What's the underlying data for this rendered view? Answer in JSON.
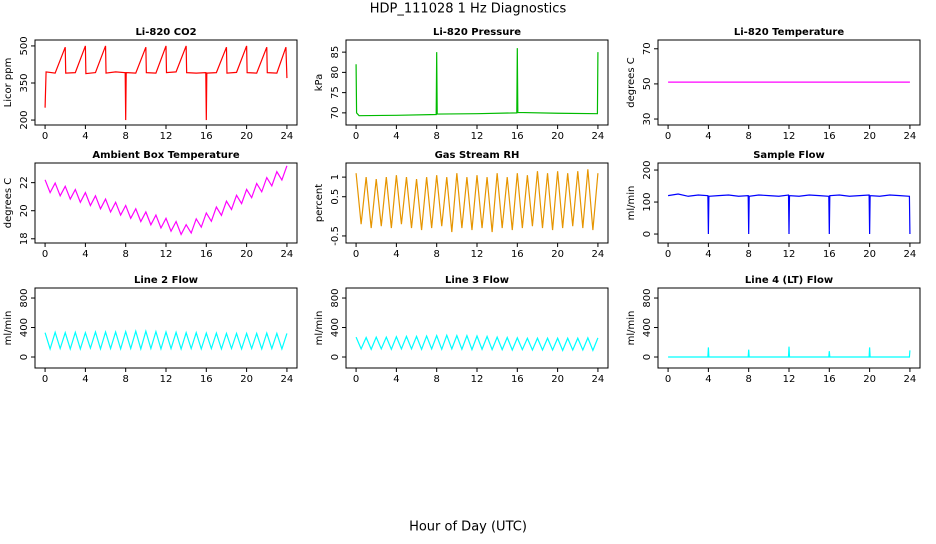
{
  "title": "HDP_111028  1 Hz Diagnostics",
  "xlabel": "Hour of Day (UTC)",
  "chart_data": [
    {
      "type": "line",
      "title": "Li-820 CO2",
      "ylabel": "Licor ppm",
      "color": "#ff0000",
      "x": [
        0,
        0.1,
        1,
        2,
        2.05,
        3,
        4,
        4.05,
        5,
        6,
        6.05,
        7,
        7.95,
        8,
        8.05,
        9,
        10,
        10.05,
        11,
        12,
        12.05,
        13,
        14,
        14.05,
        15,
        15.95,
        16,
        16.05,
        17,
        18,
        18.05,
        19,
        20,
        20.05,
        21,
        22,
        22.05,
        23,
        23.9,
        24
      ],
      "values": [
        250,
        395,
        390,
        495,
        390,
        392,
        500,
        388,
        392,
        500,
        390,
        395,
        392,
        200,
        392,
        390,
        495,
        392,
        390,
        500,
        392,
        395,
        500,
        392,
        390,
        392,
        200,
        390,
        392,
        495,
        390,
        393,
        500,
        392,
        390,
        495,
        392,
        390,
        495,
        370
      ],
      "xlim": [
        -1,
        25
      ],
      "xticks": [
        0,
        4,
        8,
        12,
        16,
        20,
        24
      ],
      "ylim": [
        180,
        524
      ],
      "yticks": [
        200,
        350,
        500
      ]
    },
    {
      "type": "line",
      "title": "Li-820 Pressure",
      "ylabel": "kPa",
      "color": "#00bb00",
      "x": [
        0,
        0.05,
        0.3,
        4,
        7.95,
        8,
        8.05,
        12,
        15.95,
        16,
        16.05,
        20,
        23.95,
        24
      ],
      "values": [
        82,
        70,
        69.3,
        69.4,
        69.6,
        85,
        69.7,
        69.8,
        70,
        86,
        70.1,
        69.9,
        69.8,
        85
      ],
      "xlim": [
        -1,
        25
      ],
      "xticks": [
        0,
        4,
        8,
        12,
        16,
        20,
        24
      ],
      "ylim": [
        67,
        88
      ],
      "yticks": [
        70,
        75,
        80,
        85
      ]
    },
    {
      "type": "line",
      "title": "Li-820 Temperature",
      "ylabel": "degrees C",
      "color": "#ff00ff",
      "x": [
        0,
        24
      ],
      "values": [
        51,
        51
      ],
      "xlim": [
        -1,
        25
      ],
      "xticks": [
        0,
        4,
        8,
        12,
        16,
        20,
        24
      ],
      "ylim": [
        26.6,
        75
      ],
      "yticks": [
        30,
        50,
        70
      ]
    },
    {
      "type": "line",
      "title": "Ambient Box Temperature",
      "ylabel": "degrees C",
      "color": "#ff00ff",
      "x": [
        0,
        0.5,
        1,
        1.5,
        2,
        2.5,
        3,
        3.5,
        4,
        4.5,
        5,
        5.5,
        6,
        6.5,
        7,
        7.5,
        8,
        8.5,
        9,
        9.5,
        10,
        10.5,
        11,
        11.5,
        12,
        12.5,
        13,
        13.5,
        14,
        14.5,
        15,
        15.5,
        16,
        16.5,
        17,
        17.5,
        18,
        18.5,
        19,
        19.5,
        20,
        20.5,
        21,
        21.5,
        22,
        22.5,
        23,
        23.5,
        24
      ],
      "values": [
        22.2,
        21.29,
        21.97,
        21.06,
        21.74,
        20.83,
        21.51,
        20.6,
        21.29,
        20.37,
        21.06,
        20.14,
        20.83,
        19.91,
        20.6,
        19.69,
        20.37,
        19.46,
        20.14,
        19.23,
        19.91,
        19.0,
        19.69,
        18.77,
        19.46,
        18.54,
        19.23,
        18.31,
        19.0,
        18.41,
        19.42,
        18.83,
        19.84,
        19.25,
        20.26,
        19.67,
        20.68,
        20.09,
        21.1,
        20.51,
        21.52,
        20.93,
        21.94,
        21.35,
        22.36,
        21.77,
        22.78,
        22.19,
        23.2
      ],
      "xlim": [
        -1,
        25
      ],
      "xticks": [
        0,
        4,
        8,
        12,
        16,
        20,
        24
      ],
      "ylim": [
        17.7,
        23.4
      ],
      "yticks": [
        18,
        20,
        22
      ]
    },
    {
      "type": "line",
      "title": "Gas Stream RH",
      "ylabel": "percent",
      "color": "#e69500",
      "x": [
        0,
        0.5,
        1,
        1.5,
        2,
        2.5,
        3,
        3.5,
        4,
        4.5,
        5,
        5.5,
        6,
        6.5,
        7,
        7.5,
        8,
        8.5,
        9,
        9.5,
        10,
        10.5,
        11,
        11.5,
        12,
        12.5,
        13,
        13.5,
        14,
        14.5,
        15,
        15.5,
        16,
        16.5,
        17,
        17.5,
        18,
        18.5,
        19,
        19.5,
        20,
        20.5,
        21,
        21.5,
        22,
        22.5,
        23,
        23.5,
        24
      ],
      "values": [
        1.1,
        -0.2,
        1.0,
        -0.3,
        0.95,
        -0.25,
        1.0,
        -0.3,
        1.05,
        -0.2,
        1.0,
        -0.3,
        0.95,
        -0.35,
        1.0,
        -0.3,
        1.05,
        -0.25,
        1.0,
        -0.4,
        1.1,
        -0.3,
        1.0,
        -0.35,
        1.05,
        -0.3,
        1.0,
        -0.4,
        1.1,
        -0.3,
        1.0,
        -0.35,
        1.1,
        -0.3,
        1.05,
        -0.25,
        1.15,
        -0.3,
        1.1,
        -0.35,
        1.15,
        -0.3,
        1.1,
        -0.25,
        1.15,
        -0.3,
        1.2,
        -0.35,
        1.1
      ],
      "xlim": [
        -1,
        25
      ],
      "xticks": [
        0,
        4,
        8,
        12,
        16,
        20,
        24
      ],
      "ylim": [
        -0.68,
        1.36
      ],
      "yticks": [
        -0.5,
        0.5,
        1
      ]
    },
    {
      "type": "line",
      "title": "Sample Flow",
      "ylabel": "ml/min",
      "color": "#0000ff",
      "x": [
        0,
        1,
        2,
        3,
        3.95,
        4,
        4.05,
        5,
        6,
        7,
        7.95,
        8,
        8.05,
        9,
        10,
        11,
        11.95,
        12,
        12.05,
        13,
        14,
        15,
        15.95,
        16,
        16.05,
        17,
        18,
        19,
        19.95,
        20,
        20.05,
        21,
        22,
        23,
        23.95,
        24
      ],
      "values": [
        120,
        125,
        118,
        122,
        120,
        0,
        118,
        120,
        122,
        118,
        120,
        0,
        118,
        122,
        120,
        118,
        122,
        0,
        120,
        118,
        122,
        120,
        118,
        0,
        120,
        122,
        118,
        120,
        122,
        0,
        120,
        118,
        122,
        120,
        118,
        0
      ],
      "xlim": [
        -1,
        25
      ],
      "xticks": [
        0,
        4,
        8,
        12,
        16,
        20,
        24
      ],
      "ylim": [
        -28,
        222
      ],
      "yticks": [
        0,
        100,
        200
      ]
    },
    {
      "type": "line",
      "title": "Line 2 Flow",
      "ylabel": "ml/min",
      "color": "#00ffff",
      "x": [
        0,
        0.5,
        1,
        1.5,
        2,
        2.5,
        3,
        3.5,
        4,
        4.5,
        5,
        5.5,
        6,
        6.5,
        7,
        7.5,
        8,
        8.5,
        9,
        9.5,
        10,
        10.5,
        11,
        11.5,
        12,
        12.5,
        13,
        13.5,
        14,
        14.5,
        15,
        15.5,
        16,
        16.5,
        17,
        17.5,
        18,
        18.5,
        19,
        19.5,
        20,
        20.5,
        21,
        21.5,
        22,
        22.5,
        23,
        23.5,
        24
      ],
      "values": [
        330,
        110,
        335,
        115,
        330,
        110,
        335,
        110,
        330,
        120,
        340,
        110,
        340,
        115,
        340,
        110,
        345,
        115,
        350,
        110,
        350,
        115,
        345,
        110,
        340,
        115,
        335,
        110,
        330,
        115,
        330,
        110,
        325,
        115,
        325,
        110,
        320,
        115,
        320,
        110,
        320,
        115,
        320,
        110,
        325,
        115,
        320,
        110,
        320
      ],
      "xlim": [
        -1,
        25
      ],
      "xticks": [
        0,
        4,
        8,
        12,
        16,
        20,
        24
      ],
      "ylim": [
        -149,
        936
      ],
      "yticks": [
        0,
        400,
        800
      ]
    },
    {
      "type": "line",
      "title": "Line 3 Flow",
      "ylabel": "ml/min",
      "color": "#00ffff",
      "x": [
        0,
        0.5,
        1,
        1.5,
        2,
        2.5,
        3,
        3.5,
        4,
        4.5,
        5,
        5.5,
        6,
        6.5,
        7,
        7.5,
        8,
        8.5,
        9,
        9.5,
        10,
        10.5,
        11,
        11.5,
        12,
        12.5,
        13,
        13.5,
        14,
        14.5,
        15,
        15.5,
        16,
        16.5,
        17,
        17.5,
        18,
        18.5,
        19,
        19.5,
        20,
        20.5,
        21,
        21.5,
        22,
        22.5,
        23,
        23.5,
        24
      ],
      "values": [
        270,
        110,
        265,
        105,
        270,
        110,
        270,
        105,
        275,
        110,
        280,
        110,
        280,
        105,
        285,
        110,
        290,
        105,
        295,
        110,
        290,
        105,
        290,
        100,
        285,
        105,
        280,
        100,
        270,
        100,
        265,
        95,
        260,
        100,
        255,
        95,
        255,
        95,
        255,
        95,
        255,
        90,
        255,
        95,
        255,
        95,
        260,
        90,
        260
      ],
      "xlim": [
        -1,
        25
      ],
      "xticks": [
        0,
        4,
        8,
        12,
        16,
        20,
        24
      ],
      "ylim": [
        -149,
        936
      ],
      "yticks": [
        0,
        400,
        800
      ]
    },
    {
      "type": "line",
      "title": "Line 4 (LT) Flow",
      "ylabel": "ml/min",
      "color": "#00ffff",
      "x": [
        0,
        3.95,
        4,
        4.05,
        7.95,
        8,
        8.05,
        11.95,
        12,
        12.05,
        15.95,
        16,
        16.05,
        19.95,
        20,
        20.05,
        23.95,
        24
      ],
      "values": [
        0,
        0,
        130,
        0,
        0,
        100,
        0,
        0,
        140,
        0,
        0,
        80,
        0,
        0,
        130,
        0,
        0,
        90
      ],
      "xlim": [
        -1,
        25
      ],
      "xticks": [
        0,
        4,
        8,
        12,
        16,
        20,
        24
      ],
      "ylim": [
        -149,
        936
      ],
      "yticks": [
        0,
        400,
        800
      ]
    }
  ]
}
